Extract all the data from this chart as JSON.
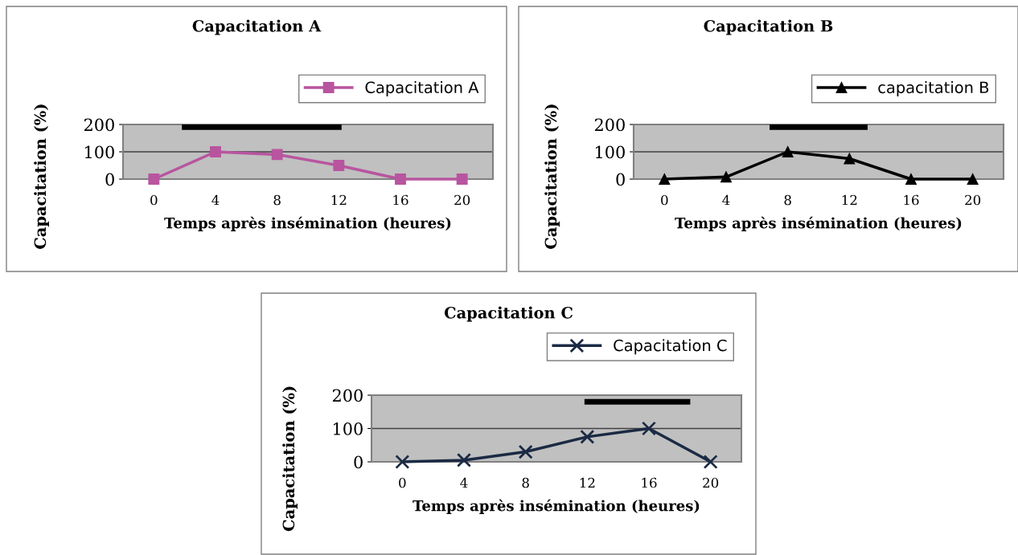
{
  "chart_data": [
    {
      "type": "line",
      "title": "Capacitation A",
      "xlabel": "Temps après insémination (heures)",
      "ylabel": "Capacitation (%)",
      "x": [
        0,
        4,
        8,
        12,
        16,
        20
      ],
      "xlim": [
        -2,
        22
      ],
      "xticks": [
        0,
        4,
        8,
        12,
        16,
        20
      ],
      "ylim": [
        0,
        200
      ],
      "yticks": [
        0,
        100,
        200
      ],
      "grid": "y",
      "legend": "top right",
      "marker": "square",
      "line_style": "solid",
      "series": [
        {
          "name": "Capacitation A",
          "color": "#b8559f",
          "values": [
            0,
            100,
            90,
            50,
            0,
            0
          ]
        },
        {
          "color": "#000000",
          "x": [
            2,
            12
          ],
          "values": [
            190,
            190
          ],
          "marker": "none"
        }
      ]
    },
    {
      "type": "line",
      "title": "Capacitation B",
      "xlabel": "Temps après insémination (heures)",
      "ylabel": "Capacitation (%)",
      "x": [
        0,
        4,
        8,
        12,
        16,
        20
      ],
      "xlim": [
        -2,
        22
      ],
      "xticks": [
        0,
        4,
        8,
        12,
        16,
        20
      ],
      "ylim": [
        0,
        200
      ],
      "yticks": [
        0,
        100,
        200
      ],
      "grid": "y",
      "legend": "top right",
      "marker": "triangle",
      "line_style": "solid",
      "series": [
        {
          "name": "capacitation B",
          "color": "#000000",
          "values": [
            0,
            8,
            100,
            75,
            0,
            0
          ]
        },
        {
          "color": "#000000",
          "x": [
            7,
            13
          ],
          "values": [
            190,
            190
          ],
          "marker": "none"
        }
      ]
    },
    {
      "type": "line",
      "title": "Capacitation C",
      "xlabel": "Temps après insémination (heures)",
      "ylabel": "Capacitation (%)",
      "x": [
        0,
        4,
        8,
        12,
        16,
        20
      ],
      "xlim": [
        -2,
        22
      ],
      "xticks": [
        0,
        4,
        8,
        12,
        16,
        20
      ],
      "ylim": [
        0,
        200
      ],
      "yticks": [
        0,
        100,
        200
      ],
      "grid": "y",
      "legend": "top right",
      "marker": "cross",
      "line_style": "solid",
      "series": [
        {
          "name": "Capacitation C",
          "color": "#1b2a44",
          "values": [
            0,
            5,
            30,
            75,
            100,
            0
          ]
        },
        {
          "color": "#000000",
          "x": [
            12,
            18.5
          ],
          "values": [
            180,
            180
          ],
          "marker": "none"
        }
      ]
    }
  ]
}
